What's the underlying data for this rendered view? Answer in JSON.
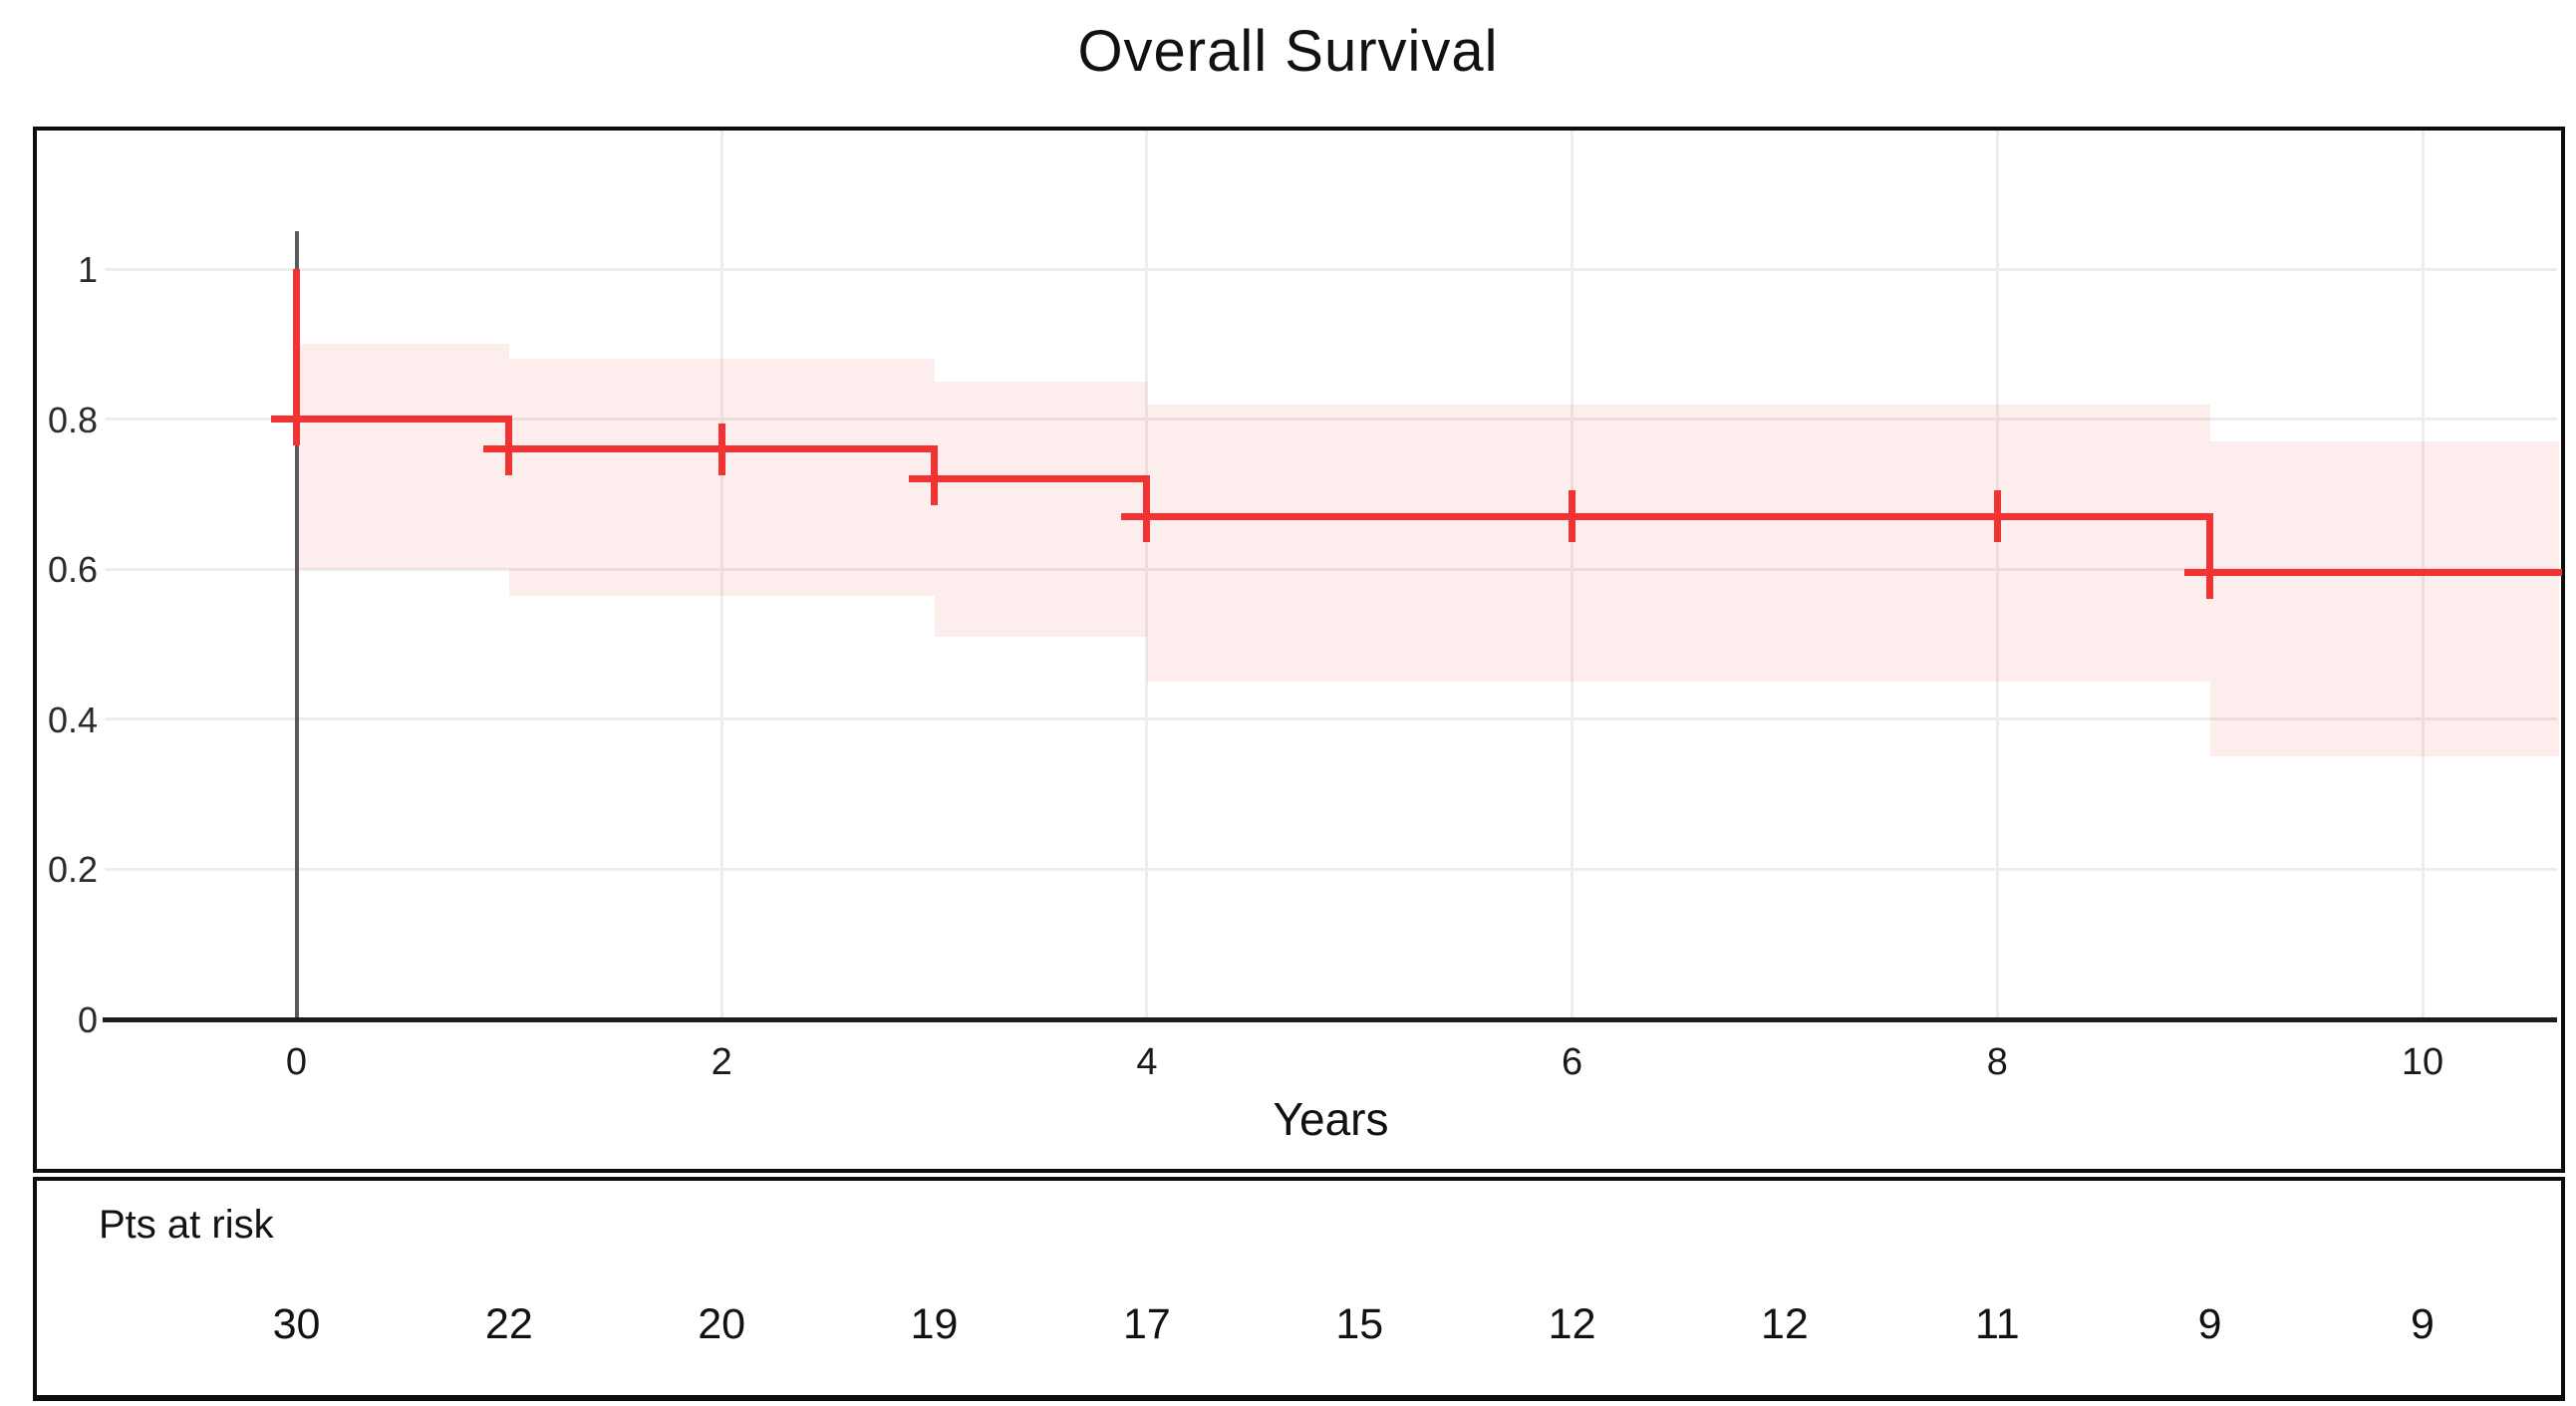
{
  "title": "Overall Survival",
  "xlabel": "Years",
  "colors": {
    "curve_red": "#f23333",
    "band_pink": "rgba(242,51,51,0.085)",
    "gridline": "#ededed",
    "zero_marker_gray": "#5a5a5a",
    "axis_black": "#1c1c1c",
    "box_border": "#0d0d0d",
    "text": "#111111",
    "background": "#ffffff"
  },
  "chart_data": {
    "type": "line",
    "subtype": "kaplan-meier-step",
    "title": "Overall Survival",
    "xlabel": "Years",
    "ylabel": "",
    "xlim": [
      -0.9,
      10.64
    ],
    "ylim": [
      0,
      1.05
    ],
    "xticks": [
      0,
      2,
      4,
      6,
      8,
      10
    ],
    "ytick_labels": [
      "1",
      "0.8",
      "0.6",
      "0.4",
      "0.2",
      "0"
    ],
    "ytick_values": [
      1,
      0.8,
      0.6,
      0.4,
      0.2,
      0
    ],
    "grid": true,
    "zero_time_marker": true,
    "legend": "none",
    "series": [
      {
        "name": "Overall Survival",
        "initial_point": {
          "t": 0,
          "s": 1.0
        },
        "steps": [
          {
            "t0": 0,
            "t1": 1,
            "s": 0.8
          },
          {
            "t0": 1,
            "t1": 3,
            "s": 0.76
          },
          {
            "t0": 3,
            "t1": 4,
            "s": 0.72
          },
          {
            "t0": 4,
            "t1": 9,
            "s": 0.67
          },
          {
            "t0": 9,
            "t1": 10.64,
            "s": 0.595
          }
        ],
        "censor_marks": [
          {
            "t": 0,
            "s": 0.8
          },
          {
            "t": 1,
            "s": 0.76
          },
          {
            "t": 2,
            "s": 0.76
          },
          {
            "t": 3,
            "s": 0.72
          },
          {
            "t": 4,
            "s": 0.67
          },
          {
            "t": 6,
            "s": 0.67
          },
          {
            "t": 8,
            "s": 0.67
          },
          {
            "t": 9,
            "s": 0.595
          }
        ],
        "confidence_band": [
          {
            "t0": 0,
            "t1": 1,
            "hi": 0.9,
            "lo": 0.6
          },
          {
            "t0": 1,
            "t1": 3,
            "hi": 0.88,
            "lo": 0.565
          },
          {
            "t0": 3,
            "t1": 4,
            "hi": 0.85,
            "lo": 0.51
          },
          {
            "t0": 4,
            "t1": 9,
            "hi": 0.82,
            "lo": 0.45
          },
          {
            "t0": 9,
            "t1": 10.64,
            "hi": 0.77,
            "lo": 0.35
          }
        ]
      }
    ],
    "risk_table": {
      "label": "Pts at risk",
      "times": [
        0,
        1,
        2,
        3,
        4,
        5,
        6,
        7,
        8,
        9,
        10
      ],
      "counts": [
        30,
        22,
        20,
        19,
        17,
        15,
        12,
        12,
        11,
        9,
        9
      ]
    }
  }
}
